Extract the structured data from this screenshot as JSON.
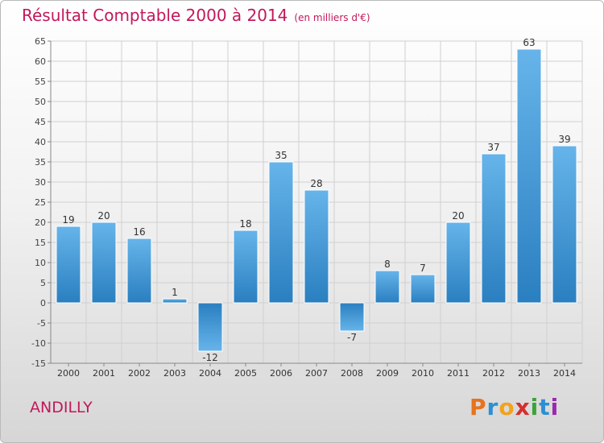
{
  "header": {
    "title": "Résultat Comptable 2000 à 2014",
    "subtitle": "(en milliers d'€)"
  },
  "footer": {
    "location": "ANDILLY",
    "logo_text": "Proxiti",
    "logo_letters": [
      "P",
      "r",
      "o",
      "x",
      "i",
      "t",
      "i"
    ],
    "logo_colors": [
      "#e8731c",
      "#2d8fd3",
      "#f2a31c",
      "#d42f2f",
      "#3aa33a",
      "#2d8fd3",
      "#9c27b0"
    ]
  },
  "colors": {
    "bar_top": "#66b4ea",
    "bar_bottom": "#2a7fc0",
    "text_accent": "#c2185b",
    "grid": "#d0d0d0"
  },
  "chart_data": {
    "type": "bar",
    "title": "Résultat Comptable 2000 à 2014",
    "subtitle": "(en milliers d'€)",
    "categories": [
      "2000",
      "2001",
      "2002",
      "2003",
      "2004",
      "2005",
      "2006",
      "2007",
      "2008",
      "2009",
      "2010",
      "2011",
      "2012",
      "2013",
      "2014"
    ],
    "values": [
      19,
      20,
      16,
      1,
      -12,
      18,
      35,
      28,
      -7,
      8,
      7,
      20,
      37,
      63,
      39
    ],
    "value_labels": [
      "19",
      "20",
      "16",
      "1",
      "-12",
      "18",
      "35",
      "28",
      "-7",
      "8",
      "7",
      "20",
      "37",
      "63",
      "39"
    ],
    "ylim": [
      -15,
      65
    ],
    "yticks": [
      -15,
      -10,
      -5,
      0,
      5,
      10,
      15,
      20,
      25,
      30,
      35,
      40,
      45,
      50,
      55,
      60,
      65
    ],
    "grid": true,
    "legend": "none"
  }
}
